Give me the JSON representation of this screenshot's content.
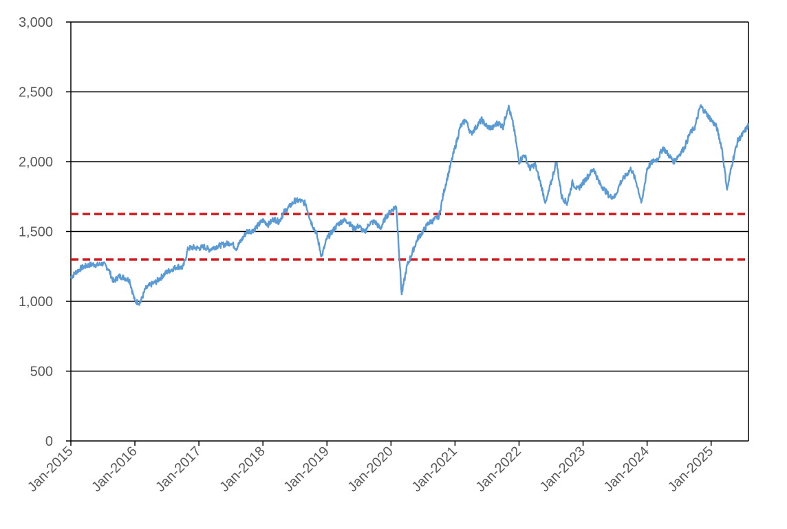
{
  "chart_data": {
    "type": "line",
    "title": "",
    "xlabel": "",
    "ylabel": "",
    "ylim": [
      0,
      3000
    ],
    "xlim": [
      "2015-01",
      "2025-08"
    ],
    "grid": true,
    "legend": "none",
    "y_ticks": [
      "0",
      "500",
      "1,000",
      "1,500",
      "2,000",
      "2,500",
      "3,000"
    ],
    "y_tick_values": [
      0,
      500,
      1000,
      1500,
      2000,
      2500,
      3000
    ],
    "x_ticks": [
      "Jan-2015",
      "Jan-2016",
      "Jan-2017",
      "Jan-2018",
      "Jan-2019",
      "Jan-2020",
      "Jan-2021",
      "Jan-2022",
      "Jan-2023",
      "Jan-2024",
      "Jan-2025"
    ],
    "reference_lines": [
      {
        "y": 1625,
        "color": "#d0191c",
        "style": "dashed"
      },
      {
        "y": 1300,
        "color": "#d0191c",
        "style": "dashed"
      }
    ],
    "series": [
      {
        "color": "#5b9bd5",
        "x": [
          "2015-01",
          "2015-02",
          "2015-03",
          "2015-04",
          "2015-05",
          "2015-06",
          "2015-07",
          "2015-08",
          "2015-09",
          "2015-10",
          "2015-11",
          "2015-12",
          "2016-01",
          "2016-02",
          "2016-03",
          "2016-04",
          "2016-05",
          "2016-06",
          "2016-07",
          "2016-08",
          "2016-09",
          "2016-10",
          "2016-11",
          "2016-12",
          "2017-01",
          "2017-02",
          "2017-03",
          "2017-04",
          "2017-05",
          "2017-06",
          "2017-07",
          "2017-08",
          "2017-09",
          "2017-10",
          "2017-11",
          "2017-12",
          "2018-01",
          "2018-02",
          "2018-03",
          "2018-04",
          "2018-05",
          "2018-06",
          "2018-07",
          "2018-08",
          "2018-09",
          "2018-10",
          "2018-11",
          "2018-12",
          "2019-01",
          "2019-02",
          "2019-03",
          "2019-04",
          "2019-05",
          "2019-06",
          "2019-07",
          "2019-08",
          "2019-09",
          "2019-10",
          "2019-11",
          "2019-12",
          "2020-01",
          "2020-02",
          "2020-03",
          "2020-04",
          "2020-05",
          "2020-06",
          "2020-07",
          "2020-08",
          "2020-09",
          "2020-10",
          "2020-11",
          "2020-12",
          "2021-01",
          "2021-02",
          "2021-03",
          "2021-04",
          "2021-05",
          "2021-06",
          "2021-07",
          "2021-08",
          "2021-09",
          "2021-10",
          "2021-11",
          "2021-12",
          "2022-01",
          "2022-02",
          "2022-03",
          "2022-04",
          "2022-05",
          "2022-06",
          "2022-07",
          "2022-08",
          "2022-09",
          "2022-10",
          "2022-11",
          "2022-12",
          "2023-01",
          "2023-02",
          "2023-03",
          "2023-04",
          "2023-05",
          "2023-06",
          "2023-07",
          "2023-08",
          "2023-09",
          "2023-10",
          "2023-11",
          "2023-12",
          "2024-01",
          "2024-02",
          "2024-03",
          "2024-04",
          "2024-05",
          "2024-06",
          "2024-07",
          "2024-08",
          "2024-09",
          "2024-10",
          "2024-11",
          "2024-12",
          "2025-01",
          "2025-02",
          "2025-03",
          "2025-04",
          "2025-05",
          "2025-06",
          "2025-07",
          "2025-08"
        ],
        "values": [
          1170,
          1210,
          1240,
          1255,
          1265,
          1260,
          1270,
          1235,
          1140,
          1180,
          1170,
          1150,
          1000,
          990,
          1090,
          1120,
          1140,
          1175,
          1210,
          1230,
          1250,
          1240,
          1380,
          1385,
          1380,
          1390,
          1370,
          1390,
          1400,
          1410,
          1420,
          1380,
          1440,
          1500,
          1505,
          1540,
          1580,
          1550,
          1590,
          1570,
          1640,
          1680,
          1720,
          1720,
          1700,
          1570,
          1490,
          1320,
          1450,
          1500,
          1550,
          1580,
          1570,
          1520,
          1540,
          1490,
          1560,
          1570,
          1520,
          1600,
          1650,
          1680,
          1050,
          1250,
          1350,
          1450,
          1500,
          1560,
          1580,
          1610,
          1800,
          1950,
          2100,
          2250,
          2300,
          2200,
          2250,
          2300,
          2250,
          2240,
          2280,
          2250,
          2400,
          2250,
          2000,
          2050,
          1950,
          1980,
          1850,
          1700,
          1850,
          2000,
          1750,
          1700,
          1850,
          1800,
          1850,
          1900,
          1950,
          1850,
          1800,
          1750,
          1750,
          1850,
          1900,
          1950,
          1850,
          1700,
          1950,
          2000,
          2020,
          2100,
          2050,
          2000,
          2050,
          2100,
          2200,
          2250,
          2400,
          2350,
          2300,
          2250,
          2100,
          1800,
          2000,
          2150,
          2200,
          2260
        ]
      }
    ]
  }
}
